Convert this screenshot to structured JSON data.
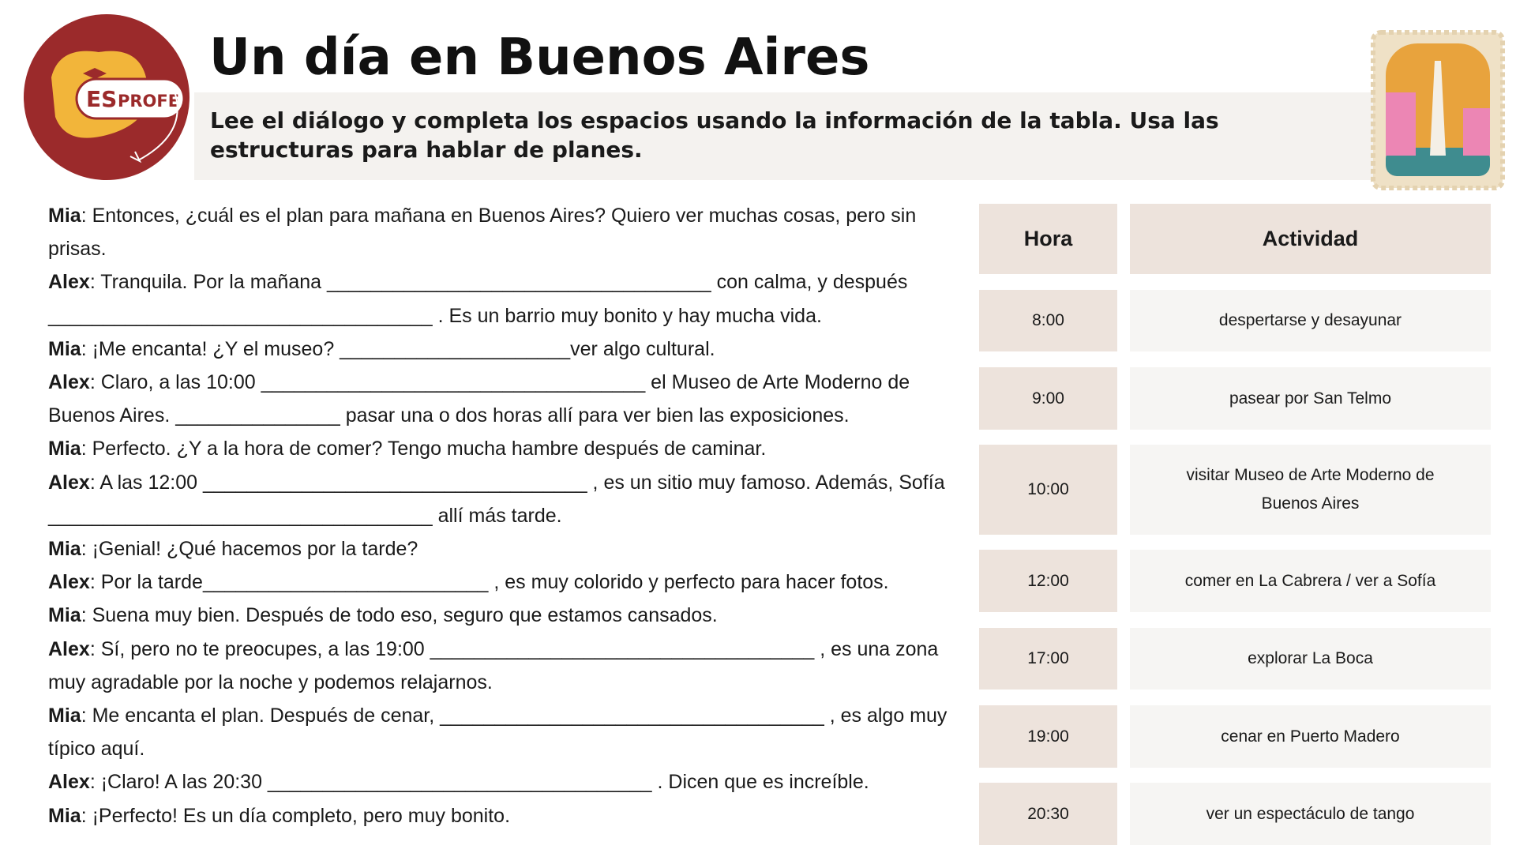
{
  "logo": {
    "es": "ES",
    "profe": "PROFE"
  },
  "header": {
    "title": "Un día en Buenos Aires",
    "instructions": "Lee el diálogo y completa los espacios usando la información de la tabla. Usa las estructuras para hablar de planes."
  },
  "dialogue": [
    {
      "speaker": "Mia",
      "text": ": Entonces, ¿cuál es el plan para mañana en Buenos Aires? Quiero ver muchas cosas, pero sin prisas."
    },
    {
      "speaker": "Alex",
      "text": ": Tranquila. Por la mañana ___________________________________ con calma, y después ___________________________________ . Es un barrio muy bonito y hay mucha vida."
    },
    {
      "speaker": "Mia",
      "text": ": ¡Me encanta! ¿Y el museo? _____________________ver algo cultural."
    },
    {
      "speaker": "Alex",
      "text": ": Claro, a las 10:00 ___________________________________  el Museo de Arte Moderno de Buenos Aires. _______________ pasar una o dos horas allí para ver bien las exposiciones."
    },
    {
      "speaker": "Mia",
      "text": ": Perfecto. ¿Y a la hora de comer? Tengo mucha hambre después de caminar."
    },
    {
      "speaker": "Alex",
      "text": ": A las 12:00 ___________________________________ , es un sitio muy famoso. Además, Sofía ___________________________________  allí más tarde."
    },
    {
      "speaker": "Mia",
      "text": ": ¡Genial! ¿Qué hacemos por la tarde?"
    },
    {
      "speaker": "Alex",
      "text": ": Por la tarde__________________________ , es muy colorido y perfecto para hacer fotos."
    },
    {
      "speaker": "Mia",
      "text": ": Suena muy bien. Después de todo eso, seguro que estamos cansados."
    },
    {
      "speaker": "Alex",
      "text": ": Sí, pero no te preocupes, a las 19:00 ___________________________________ , es una zona muy agradable por la noche y podemos relajarnos."
    },
    {
      "speaker": "Mia",
      "text": ": Me encanta el plan. Después de cenar, ___________________________________ , es algo muy típico aquí."
    },
    {
      "speaker": "Alex",
      "text": ": ¡Claro! A las 20:30 ___________________________________ . Dicen que es increíble."
    },
    {
      "speaker": "Mia",
      "text": ": ¡Perfecto! Es un día completo, pero muy bonito."
    }
  ],
  "table": {
    "header": [
      "Hora",
      "Actividad"
    ],
    "rows": [
      [
        "8:00",
        "despertarse y desayunar"
      ],
      [
        "9:00",
        "pasear por San Telmo"
      ],
      [
        "10:00",
        "visitar Museo de Arte Moderno de Buenos Aires"
      ],
      [
        "12:00",
        "comer en La Cabrera / ver a Sofía"
      ],
      [
        "17:00",
        "explorar La Boca"
      ],
      [
        "19:00",
        "cenar en Puerto Madero"
      ],
      [
        "20:30",
        "ver un espectáculo de tango"
      ]
    ]
  }
}
